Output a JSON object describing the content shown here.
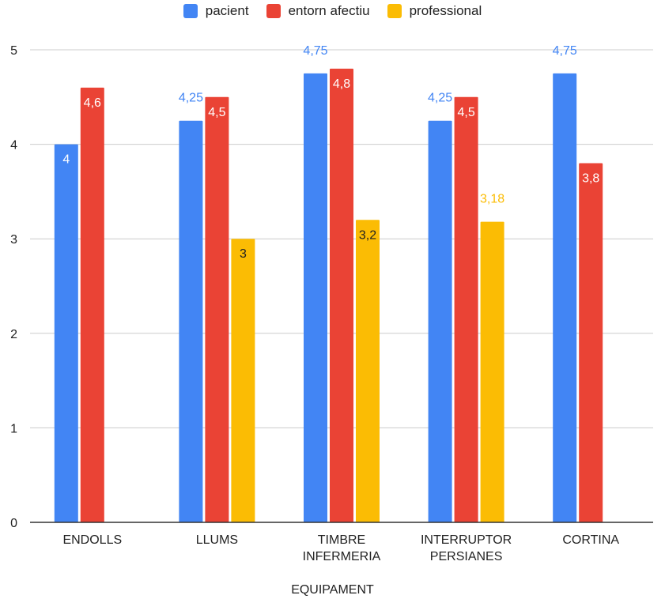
{
  "chart_data": {
    "type": "bar",
    "categories": [
      [
        "ENDOLLS"
      ],
      [
        "LLUMS"
      ],
      [
        "TIMBRE",
        "INFERMERIA"
      ],
      [
        "INTERRUPTOR",
        "PERSIANES"
      ],
      [
        "CORTINA"
      ]
    ],
    "series": [
      {
        "name": "pacient",
        "color": "#4285f4",
        "values": [
          4,
          4.25,
          4.75,
          4.25,
          4.75
        ],
        "labels": [
          "4",
          "4,25",
          "4,75",
          "4,25",
          "4,75"
        ]
      },
      {
        "name": "entorn afectiu",
        "color": "#ea4335",
        "values": [
          4.6,
          4.5,
          4.8,
          4.5,
          3.8
        ],
        "labels": [
          "4,6",
          "4,5",
          "4,8",
          "4,5",
          "3,8"
        ]
      },
      {
        "name": "professional",
        "color": "#fbbc04",
        "values": [
          null,
          3,
          3.2,
          3.18,
          null
        ],
        "labels": [
          "",
          "3",
          "3,2",
          "3,18",
          ""
        ]
      }
    ],
    "xlabel": "EQUIPAMENT",
    "ylabel": "",
    "ylim": [
      0,
      5
    ],
    "yticks": [
      "0",
      "1",
      "2",
      "3",
      "4",
      "5"
    ],
    "grid": true,
    "legend": "top"
  }
}
